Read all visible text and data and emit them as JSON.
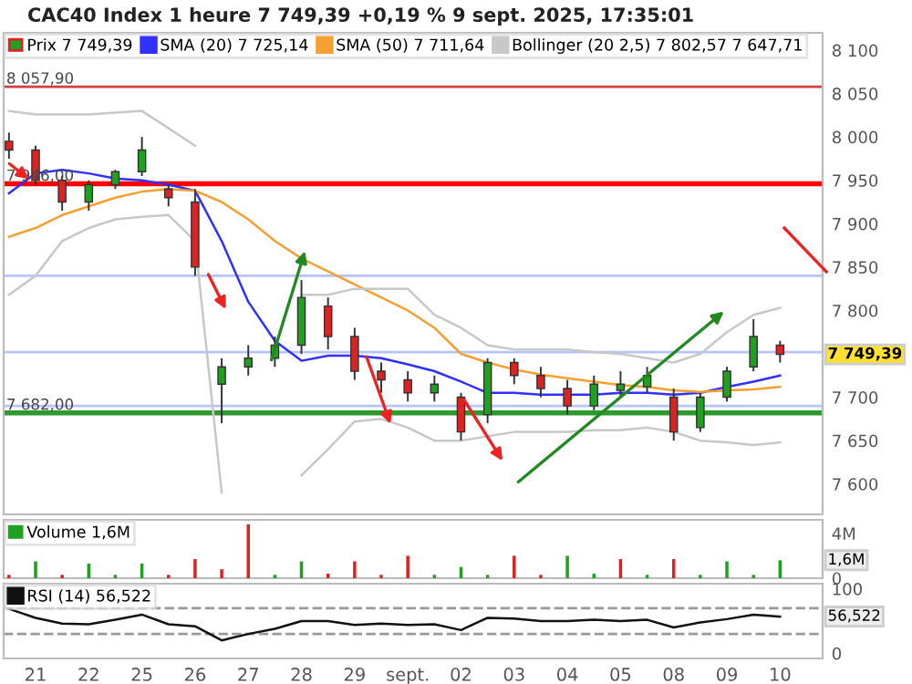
{
  "chart_data": [
    {
      "type": "candlestick",
      "title": "CAC40 Index 1 heure 7 749,39 +0,19 % 9 sept. 2025, 17:35:01",
      "categories": [
        null,
        null,
        null,
        null,
        null,
        null,
        null,
        null,
        null,
        null,
        null,
        null,
        null,
        null,
        null,
        null,
        null,
        null,
        null,
        null,
        null,
        null,
        null,
        null,
        null,
        null,
        null,
        null,
        null,
        null
      ],
      "ylim": [
        7565,
        8120
      ],
      "yticks": [
        {
          "value": 7600,
          "label": "7 600"
        },
        {
          "value": 7650,
          "label": "7 650"
        },
        {
          "value": 7700,
          "label": "7 700"
        },
        {
          "value": 7800,
          "label": "7 800"
        },
        {
          "value": 7850,
          "label": "7 850"
        },
        {
          "value": 7900,
          "label": "7 900"
        },
        {
          "value": 7950,
          "label": "7 950"
        },
        {
          "value": 8000,
          "label": "8 000"
        },
        {
          "value": 8050,
          "label": "8 050"
        },
        {
          "value": 8100,
          "label": "8 100"
        }
      ],
      "tick_labels": "y",
      "legend": "top left",
      "grid": false,
      "series": [
        {
          "type": "candlestick",
          "name": "Prix 7 749,39",
          "color": "#1fa01f",
          "colors": [
            "#dd2222",
            "#dd2222",
            "#dd2222",
            "#1fa01f",
            "#1fa01f",
            "#1fa01f",
            "#dd2222",
            "#dd2222",
            "#1fa01f",
            "#1fa01f",
            "#1fa01f",
            "#1fa01f",
            "#dd2222",
            "#dd2222",
            "#dd2222",
            "#dd2222",
            "#1fa01f",
            "#dd2222",
            "#1fa01f",
            "#dd2222",
            "#dd2222",
            "#dd2222",
            "#1fa01f",
            "#1fa01f",
            "#1fa01f",
            "#dd2222",
            "#1fa01f",
            "#1fa01f",
            "#1fa01f",
            "#dd2222"
          ],
          "ohlc": [
            [
              7995,
              8005,
              7975,
              7985
            ],
            [
              7985,
              7990,
              7945,
              7950
            ],
            [
              7950,
              7955,
              7915,
              7925
            ],
            [
              7925,
              7950,
              7915,
              7945
            ],
            [
              7945,
              7962,
              7940,
              7960
            ],
            [
              7960,
              8000,
              7955,
              7985
            ],
            [
              7940,
              7945,
              7920,
              7930
            ],
            [
              7925,
              7940,
              7840,
              7850
            ],
            [
              7715,
              7745,
              7670,
              7735
            ],
            [
              7735,
              7760,
              7725,
              7745
            ],
            [
              7745,
              7770,
              7735,
              7760
            ],
            [
              7760,
              7835,
              7750,
              7815
            ],
            [
              7805,
              7815,
              7755,
              7770
            ],
            [
              7770,
              7780,
              7720,
              7730
            ],
            [
              7730,
              7740,
              7705,
              7720
            ],
            [
              7720,
              7730,
              7695,
              7705
            ],
            [
              7705,
              7725,
              7695,
              7715
            ],
            [
              7700,
              7705,
              7650,
              7660
            ],
            [
              7680,
              7745,
              7670,
              7740
            ],
            [
              7740,
              7745,
              7715,
              7725
            ],
            [
              7725,
              7735,
              7700,
              7710
            ],
            [
              7710,
              7720,
              7680,
              7690
            ],
            [
              7690,
              7725,
              7685,
              7715
            ],
            [
              7708,
              7730,
              7700,
              7715
            ],
            [
              7712,
              7735,
              7705,
              7725
            ],
            [
              7700,
              7710,
              7650,
              7660
            ],
            [
              7665,
              7705,
              7660,
              7700
            ],
            [
              7700,
              7735,
              7695,
              7730
            ],
            [
              7735,
              7790,
              7730,
              7770
            ],
            [
              7760,
              7765,
              7740,
              7749.39
            ]
          ]
        },
        {
          "type": "line",
          "name": "SMA (20) 7 725,14",
          "color": "#3030ff",
          "values": [
            7935,
            7958,
            7962,
            7958,
            7952,
            7950,
            7945,
            7938,
            7880,
            7810,
            7765,
            7742,
            7748,
            7748,
            7745,
            7738,
            7730,
            7718,
            7705,
            7705,
            7703,
            7703,
            7703,
            7705,
            7705,
            7703,
            7705,
            7712,
            7718,
            7725
          ]
        },
        {
          "type": "line",
          "name": "SMA (50) 7 711,64",
          "color": "#f5a030",
          "values": [
            7885,
            7895,
            7910,
            7920,
            7930,
            7937,
            7940,
            7938,
            7925,
            7905,
            7880,
            7860,
            7845,
            7830,
            7815,
            7800,
            7780,
            7750,
            7740,
            7732,
            7726,
            7722,
            7718,
            7714,
            7712,
            7708,
            7706,
            7708,
            7709,
            7712
          ]
        },
        {
          "type": "line",
          "name": "Bollinger (20 2,5) 7 802,57 7 647,71",
          "color": "#c8c8c8",
          "values": [
            8030,
            8026,
            8026,
            8026,
            8028,
            8030,
            8010,
            7990,
            null,
            null,
            null,
            7818,
            7818,
            7825,
            7825,
            7825,
            7795,
            7780,
            7760,
            7755,
            7755,
            7755,
            7752,
            7750,
            7745,
            7740,
            7750,
            7775,
            7795,
            7803
          ]
        },
        {
          "type": "line",
          "color": "#c8c8c8",
          "values": [
            7818,
            7840,
            7880,
            7895,
            7905,
            7908,
            7910,
            7880,
            7590,
            null,
            null,
            7610,
            7640,
            7672,
            7675,
            7665,
            7650,
            7650,
            7655,
            7660,
            7660,
            7660,
            7662,
            7662,
            7665,
            7660,
            7650,
            7648,
            7645,
            7648
          ]
        }
      ],
      "ref_lines": [
        {
          "axis": "y",
          "value": 8057.9,
          "label": "8 057,90",
          "color": "#d04040"
        },
        {
          "axis": "y",
          "value": 7946,
          "label": "7 946,00",
          "color": "#ff0000"
        },
        {
          "axis": "y",
          "value": 7682,
          "label": "7 682,00",
          "color": "#2e9a2e"
        },
        {
          "axis": "y",
          "value": 7840,
          "color": "#b8c4ff"
        },
        {
          "axis": "y",
          "value": 7752,
          "color": "#b8c4ff"
        },
        {
          "axis": "y",
          "value": 7690,
          "color": "#b8c4ff"
        }
      ],
      "annotations": [
        "7 749,39"
      ]
    },
    {
      "type": "bar",
      "categories": [
        null,
        null,
        null,
        null,
        null,
        null,
        null,
        null,
        null,
        null,
        null,
        null,
        null,
        null,
        null,
        null,
        null,
        null,
        null,
        null,
        null,
        null,
        null,
        null,
        null,
        null,
        null,
        null,
        null,
        null
      ],
      "ylim": [
        0,
        5.2
      ],
      "yticks": [
        {
          "value": 0,
          "label": "0"
        },
        {
          "value": 4,
          "label": "4M"
        }
      ],
      "tick_labels": "y",
      "legend": "top left",
      "series": [
        {
          "name": "Volume 1,6M",
          "color": "#1fa01f",
          "colors": [
            "#dd2222",
            "#1fa01f",
            "#dd2222",
            "#1fa01f",
            "#1fa01f",
            "#1fa01f",
            "#dd2222",
            "#dd2222",
            "#dd2222",
            "#dd2222",
            "#1fa01f",
            "#1fa01f",
            "#dd2222",
            "#dd2222",
            "#dd2222",
            "#dd2222",
            "#1fa01f",
            "#1fa01f",
            "#1fa01f",
            "#dd2222",
            "#dd2222",
            "#1fa01f",
            "#1fa01f",
            "#dd2222",
            "#1fa01f",
            "#dd2222",
            "#1fa01f",
            "#1fa01f",
            "#1fa01f",
            "#1fa01f"
          ],
          "values": [
            0.3,
            1.5,
            0.3,
            1.3,
            0.3,
            1.3,
            0.3,
            1.7,
            0.8,
            4.8,
            0.3,
            1.5,
            0.4,
            1.5,
            0.3,
            2.0,
            0.3,
            1.0,
            0.3,
            2.0,
            0.3,
            2.0,
            0.4,
            1.7,
            0.3,
            1.7,
            0.3,
            1.5,
            0.3,
            1.6
          ]
        }
      ],
      "annotations": [
        "1,6M"
      ]
    },
    {
      "type": "line",
      "categories": [
        null,
        "21",
        null,
        "22",
        null,
        "25",
        null,
        "26",
        null,
        "27",
        null,
        "28",
        null,
        "29",
        null,
        "sept.",
        null,
        "02",
        null,
        "03",
        null,
        "04",
        null,
        "05",
        null,
        "08",
        null,
        "09",
        null,
        "10"
      ],
      "ylim": [
        -8,
        108
      ],
      "yticks": [
        0,
        100
      ],
      "legend": "top left",
      "series": [
        {
          "name": "RSI (14) 56,522",
          "color": "#111111",
          "values": [
            69,
            55,
            46,
            45,
            52,
            60,
            45,
            42,
            20,
            30,
            38,
            50,
            50,
            44,
            46,
            44,
            45,
            36,
            55,
            54,
            50,
            50,
            52,
            50,
            52,
            40,
            48,
            53,
            60,
            57
          ]
        }
      ],
      "ref_lines": [
        {
          "axis": "y",
          "value": 70,
          "color": "#999999",
          "line_style": "dashed"
        },
        {
          "axis": "y",
          "value": 30,
          "color": "#999999",
          "line_style": "dashed"
        }
      ],
      "annotations": [
        "56,522"
      ]
    }
  ]
}
